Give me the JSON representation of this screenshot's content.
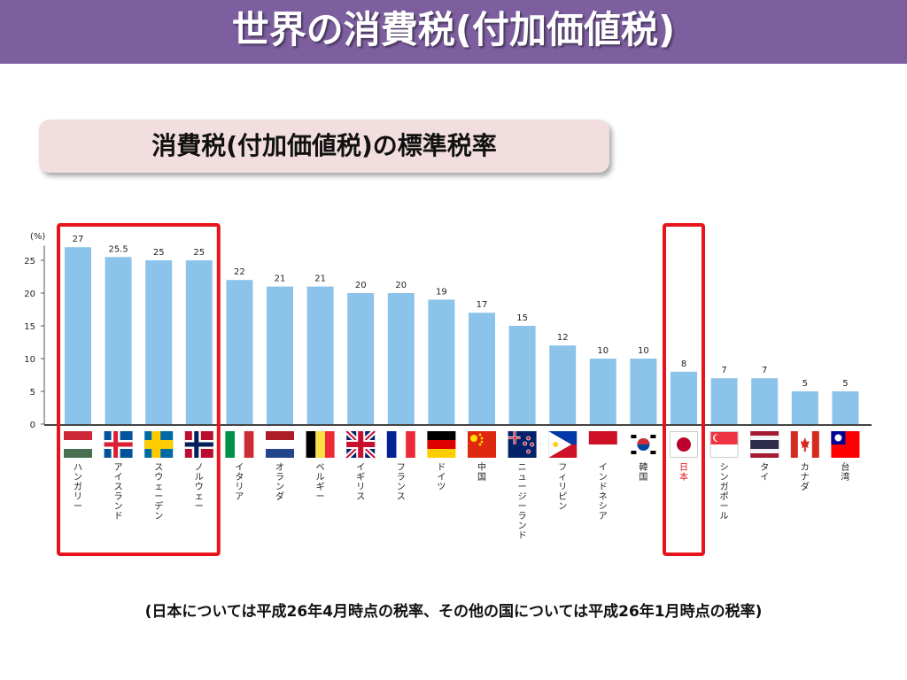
{
  "header": {
    "title": "世界の消費税(付加価値税)",
    "bg_color": "#7d5fa0"
  },
  "subtitle": "消費税(付加価値税)の標準税率",
  "footnote": "(日本については平成26年4月時点の税率、その他の国については平成26年1月時点の税率)",
  "highlight_color": "#e8141b",
  "chart_data": {
    "type": "bar",
    "title": "",
    "ylabel": "(%)",
    "xlabel": "",
    "ylim": [
      0,
      27
    ],
    "yticks": [
      0,
      5,
      10,
      15,
      20,
      25
    ],
    "grid": false,
    "bar_color": "#8cc3ea",
    "categories": [
      "ハンガリー",
      "アイスランド",
      "スウェーデン",
      "ノルウェー",
      "イタリア",
      "オランダ",
      "ベルギー",
      "イギリス",
      "フランス",
      "ドイツ",
      "中国",
      "ニュージーランド",
      "フィリピン",
      "インドネシア",
      "韓国",
      "日本",
      "シンガポール",
      "タイ",
      "カナダ",
      "台湾"
    ],
    "values": [
      27,
      25.5,
      25,
      25,
      22,
      21,
      21,
      20,
      20,
      19,
      17,
      15,
      12,
      10,
      10,
      8,
      7,
      7,
      5,
      5
    ],
    "value_labels": [
      "27",
      "25.5",
      "25",
      "25",
      "22",
      "21",
      "21",
      "20",
      "20",
      "19",
      "17",
      "15",
      "12",
      "10",
      "10",
      "8",
      "7",
      "7",
      "5",
      "5"
    ],
    "flags": [
      "hungary-flag",
      "iceland-flag",
      "sweden-flag",
      "norway-flag",
      "italy-flag",
      "netherlands-flag",
      "belgium-flag",
      "uk-flag",
      "france-flag",
      "germany-flag",
      "china-flag",
      "new-zealand-flag",
      "philippines-flag",
      "indonesia-flag",
      "south-korea-flag",
      "japan-flag",
      "singapore-flag",
      "thailand-flag",
      "canada-flag",
      "taiwan-flag"
    ],
    "highlighted_groups": [
      {
        "from": "ハンガリー",
        "to": "ノルウェー"
      },
      {
        "from": "日本",
        "to": "日本"
      }
    ],
    "highlighted_label": "日本"
  }
}
